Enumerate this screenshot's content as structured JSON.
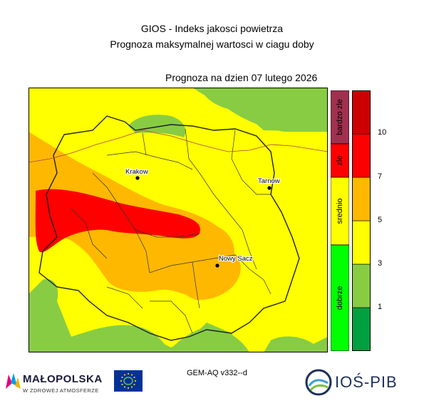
{
  "header": {
    "title_line1": "GIOS - Indeks jakosci powietrza",
    "title_line2": "Prognoza maksymalnej wartosci w ciagu doby",
    "forecast_date": "Prognoza na dzien  07 lutego 2026"
  },
  "cities": [
    {
      "name": "Krakow"
    },
    {
      "name": "Tarnow"
    },
    {
      "name": "Nowy Sacz"
    }
  ],
  "categories": [
    {
      "label": "bardzo zle",
      "color": "#a0304f"
    },
    {
      "label": "zle",
      "color": "#ff0000"
    },
    {
      "label": "srednio",
      "color": "#ffff00"
    },
    {
      "label": "dobrze",
      "color": "#00ff00"
    }
  ],
  "scale": {
    "colors": [
      "#00a040",
      "#88cc44",
      "#ffff00",
      "#ffb800",
      "#ff0000",
      "#cc0000"
    ],
    "ticks": [
      "1",
      "3",
      "5",
      "7",
      "10"
    ]
  },
  "model": "GEM-AQ v332--d",
  "logos": {
    "malopolska_name": "MAŁOPOLSKA",
    "malopolska_sub": "W ZDROWEJ ATMOSFERZE",
    "ios_name": "IOŚ-PIB"
  }
}
